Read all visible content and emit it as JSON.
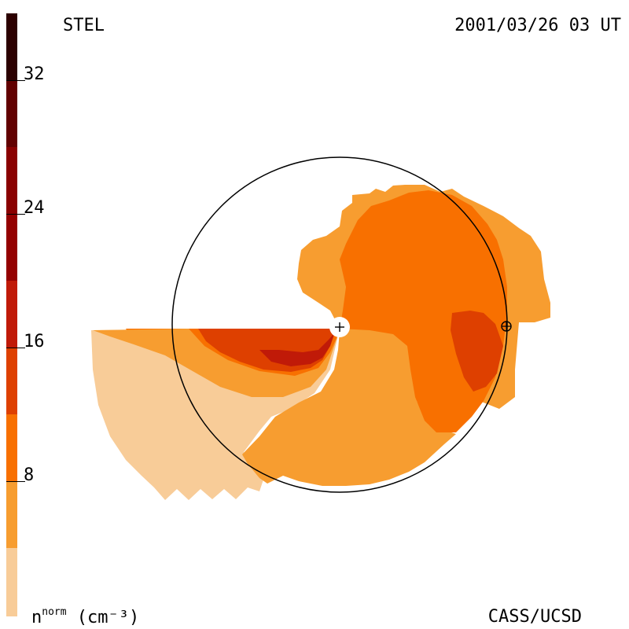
{
  "header": {
    "instrument": "STEL",
    "timestamp": "2001/03/26 03 UT"
  },
  "footer": {
    "quantity": "n",
    "quantity_sup": "norm",
    "units": " (cm⁻³)",
    "credit": "CASS/UCSD"
  },
  "colorbar": {
    "tick_labels": [
      "32",
      "24",
      "16",
      "8"
    ],
    "levels": [
      {
        "color": "#f8cc98"
      },
      {
        "color": "#f79d30"
      },
      {
        "color": "#f87000"
      },
      {
        "color": "#de4000"
      },
      {
        "color": "#c01a08"
      },
      {
        "color": "#940000"
      },
      {
        "color": "#620000"
      },
      {
        "color": "#2c0000"
      }
    ]
  },
  "colors": {
    "level1": "#f8cc98",
    "level2": "#f79d30",
    "level3": "#f87000",
    "level4": "#de4000",
    "level5": "#c01a08",
    "orbit": "#000000",
    "background": "#ffffff"
  },
  "markers": {
    "sun": "sun-symbol",
    "earth": "earth-symbol"
  }
}
